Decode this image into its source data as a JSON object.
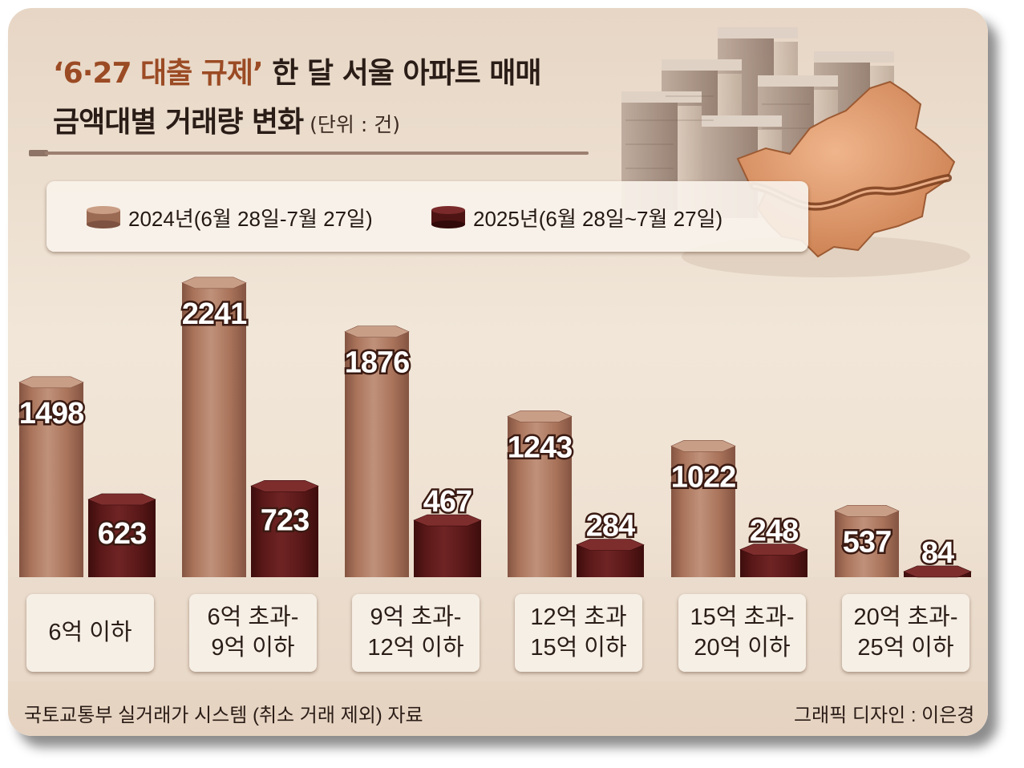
{
  "title": {
    "line1_highlight": "‘6·27 대출 규제’",
    "line1_rest": " 한 달 서울 아파트 매매",
    "line2": "금액대별 거래량 변화",
    "unit": "(단위 : 건)"
  },
  "legend": {
    "item1": "2024년(6월 28일-7월 27일)",
    "item2": "2025년(6월 28일~7월 27일)"
  },
  "colors": {
    "series_2024": "#a9735a",
    "series_2025": "#5a1818",
    "background": "#ecdfd0"
  },
  "chart_data": {
    "type": "bar",
    "title": "‘6·27 대출 규제’ 한 달 서울 아파트 매매 금액대별 거래량 변화",
    "unit": "건",
    "categories": [
      "6억 이하",
      "6억 초과-\n9억 이하",
      "9억 초과-\n12억 이하",
      "12억 초과\n15억 이하",
      "15억 초과-\n20억 이하",
      "20억 초과-\n25억 이하"
    ],
    "series": [
      {
        "name": "2024년(6월 28일-7월 27일)",
        "values": [
          1498,
          2241,
          1876,
          1243,
          1022,
          537
        ]
      },
      {
        "name": "2025년(6월 28일~7월 27일)",
        "values": [
          623,
          723,
          467,
          284,
          248,
          84
        ]
      }
    ],
    "ylim": [
      0,
      2300
    ],
    "grid": false,
    "legend_position": "top"
  },
  "footer": {
    "source": "국토교통부 실거래가 시스템 (취소 거래 제외) 자료",
    "credit": "그래픽 디자인 : 이은경"
  }
}
